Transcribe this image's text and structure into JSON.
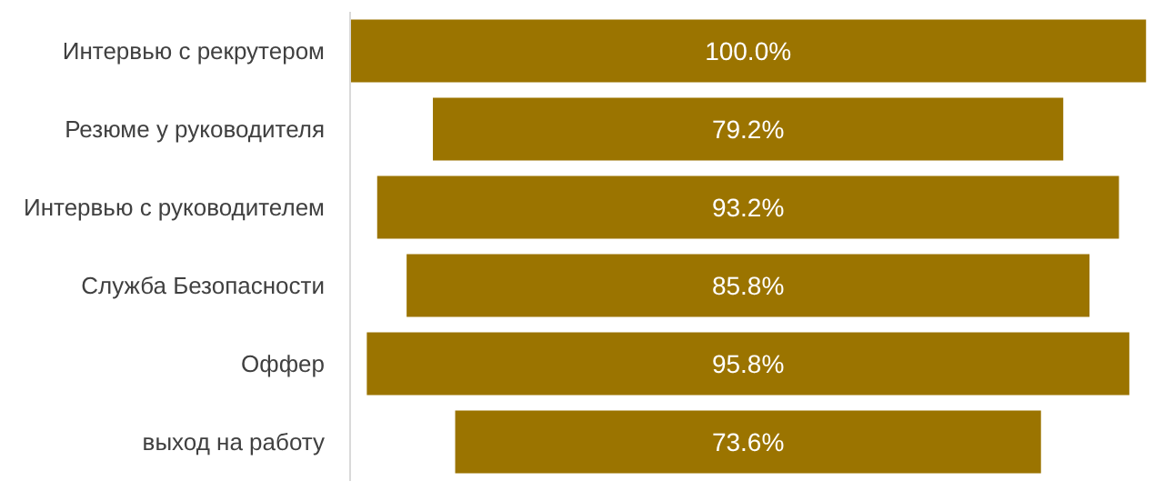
{
  "chart_data": {
    "type": "other",
    "categories": [
      "Интервью с рекрутером",
      "Резюме у руководителя",
      "Интервью с руководителем",
      "Служба Безопасности",
      "Оффер",
      "выход на работу"
    ],
    "values": [
      100.0,
      79.2,
      93.2,
      85.8,
      95.8,
      73.6
    ],
    "value_labels": [
      "100.0%",
      "79.2%",
      "93.2%",
      "85.8%",
      "95.8%",
      "73.6%"
    ],
    "color": "#9b7400"
  }
}
